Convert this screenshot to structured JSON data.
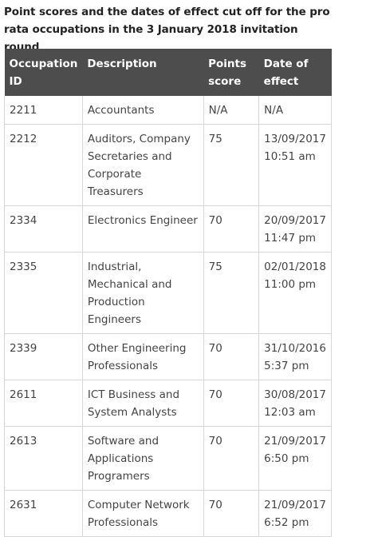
{
  "caption": {
    "text": "Point scores and the dates of effect cut off for the pro rata occupations in the 3 January 2018 invitation round",
    "period": "."
  },
  "table": {
    "headers": {
      "id": "Occupation ID",
      "description": "Description",
      "points": "Points score",
      "date": "Date of effect"
    },
    "rows": [
      {
        "id": "2211",
        "description": "Accountants",
        "points": "N/A",
        "date": "N/A"
      },
      {
        "id": "2212",
        "description": "Auditors, Company Secretaries and Corporate Treasurers",
        "points": "75",
        "date": "13/09/2017 10:51 am"
      },
      {
        "id": "2334",
        "description": "Electronics Engineer",
        "points": "70",
        "date": "20/09/2017 11:47 pm"
      },
      {
        "id": "2335",
        "description": "Industrial, Mechanical and Production Engineers",
        "points": "75",
        "date": "02/01/2018 11:00 pm"
      },
      {
        "id": "2339",
        "description": "Other Engineering Professionals",
        "points": "70",
        "date": "31/10/2016 5:37 pm"
      },
      {
        "id": "2611",
        "description": "ICT Business and System Analysts",
        "points": "70",
        "date": "30/08/2017 12:03 am"
      },
      {
        "id": "2613",
        "description": "Software and Applications Programers",
        "points": "70",
        "date": "21/09/2017 6:50 pm"
      },
      {
        "id": "2631",
        "description": "Computer Network Professionals",
        "points": "70",
        "date": "21/09/2017 6:52 pm"
      }
    ]
  }
}
